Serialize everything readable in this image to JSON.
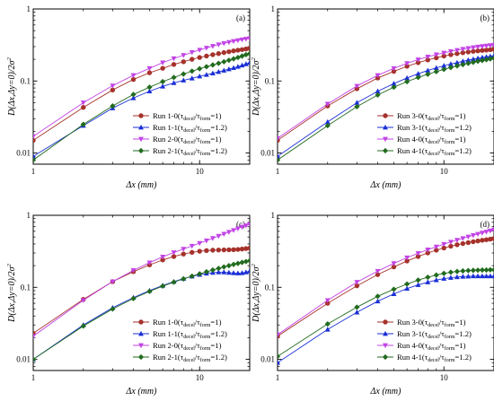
{
  "chart_data": [
    {
      "type": "line",
      "panel": "(a)",
      "xlabel": "Δx (mm)",
      "ylabel": "D(Δx,Δy=0)/2σ²",
      "xscale": "log",
      "yscale": "log",
      "xlim": [
        1,
        20
      ],
      "ylim": [
        0.007,
        1
      ],
      "x_ticks": [
        "1",
        "10"
      ],
      "y_ticks": [
        "0.01",
        "0.1",
        "1"
      ],
      "legend_position": "lower-right",
      "x": [
        1,
        2,
        3,
        4,
        5,
        6,
        7,
        8,
        9,
        10,
        11,
        12,
        13,
        14,
        15,
        16,
        17,
        18,
        19,
        20
      ],
      "series": [
        {
          "name": "Run 1-0(τ_decel/τ_form=1)",
          "color": "#a6322b",
          "marker": "circle",
          "values": [
            0.015,
            0.043,
            0.075,
            0.105,
            0.13,
            0.15,
            0.17,
            0.185,
            0.2,
            0.212,
            0.222,
            0.232,
            0.24,
            0.248,
            0.255,
            0.262,
            0.268,
            0.273,
            0.278,
            0.282
          ]
        },
        {
          "name": "Run 1-1(τ_decel/τ_form=1.2)",
          "color": "#1a2fd6",
          "marker": "triangle-up",
          "values": [
            0.009,
            0.024,
            0.042,
            0.058,
            0.072,
            0.084,
            0.094,
            0.102,
            0.109,
            0.116,
            0.122,
            0.128,
            0.134,
            0.14,
            0.146,
            0.152,
            0.158,
            0.165,
            0.172,
            0.18
          ]
        },
        {
          "name": "Run 2-0(τ_decel/τ_form=1)",
          "color": "#c243e6",
          "marker": "triangle-down",
          "values": [
            0.017,
            0.05,
            0.086,
            0.12,
            0.15,
            0.18,
            0.205,
            0.228,
            0.25,
            0.27,
            0.288,
            0.305,
            0.32,
            0.333,
            0.345,
            0.356,
            0.366,
            0.375,
            0.383,
            0.39
          ]
        },
        {
          "name": "Run 2-1(τ_decel/τ_form=1.2)",
          "color": "#216b1e",
          "marker": "diamond",
          "values": [
            0.008,
            0.025,
            0.045,
            0.065,
            0.082,
            0.098,
            0.112,
            0.125,
            0.137,
            0.148,
            0.158,
            0.167,
            0.176,
            0.185,
            0.194,
            0.203,
            0.212,
            0.222,
            0.232,
            0.24
          ]
        }
      ]
    },
    {
      "type": "line",
      "panel": "(b)",
      "xlabel": "Δx (mm)",
      "ylabel": "D(Δx,Δy=0)/2σ²",
      "xscale": "log",
      "yscale": "log",
      "xlim": [
        1,
        20
      ],
      "ylim": [
        0.007,
        1
      ],
      "x_ticks": [
        "1",
        "10"
      ],
      "y_ticks": [
        "0.01",
        "0.1",
        "1"
      ],
      "legend_position": "lower-right",
      "x": [
        1,
        2,
        3,
        4,
        5,
        6,
        7,
        8,
        9,
        10,
        11,
        12,
        13,
        14,
        15,
        16,
        17,
        18,
        19,
        20
      ],
      "series": [
        {
          "name": "Run 3-0(τ_decel/τ_form=1)",
          "color": "#a6322b",
          "marker": "circle",
          "values": [
            0.015,
            0.045,
            0.078,
            0.11,
            0.136,
            0.16,
            0.18,
            0.196,
            0.21,
            0.222,
            0.232,
            0.24,
            0.247,
            0.253,
            0.258,
            0.262,
            0.266,
            0.269,
            0.272,
            0.275
          ]
        },
        {
          "name": "Run 3-1(τ_decel/τ_form=1.2)",
          "color": "#1a2fd6",
          "marker": "triangle-up",
          "values": [
            0.009,
            0.027,
            0.05,
            0.072,
            0.092,
            0.11,
            0.126,
            0.14,
            0.152,
            0.163,
            0.172,
            0.18,
            0.188,
            0.195,
            0.201,
            0.207,
            0.212,
            0.216,
            0.22,
            0.225
          ]
        },
        {
          "name": "Run 4-0(τ_decel/τ_form=1)",
          "color": "#c243e6",
          "marker": "triangle-down",
          "values": [
            0.016,
            0.048,
            0.085,
            0.12,
            0.15,
            0.176,
            0.198,
            0.217,
            0.233,
            0.246,
            0.258,
            0.268,
            0.277,
            0.285,
            0.292,
            0.298,
            0.303,
            0.308,
            0.312,
            0.316
          ]
        },
        {
          "name": "Run 4-1(τ_decel/τ_form=1.2)",
          "color": "#216b1e",
          "marker": "diamond",
          "values": [
            0.008,
            0.024,
            0.044,
            0.064,
            0.082,
            0.098,
            0.112,
            0.124,
            0.135,
            0.145,
            0.154,
            0.162,
            0.169,
            0.176,
            0.182,
            0.188,
            0.193,
            0.198,
            0.203,
            0.208
          ]
        }
      ]
    },
    {
      "type": "line",
      "panel": "(c)",
      "xlabel": "Δx (mm)",
      "ylabel": "D(Δx,Δy=0)/2σ²",
      "xscale": "log",
      "yscale": "log",
      "xlim": [
        1,
        20
      ],
      "ylim": [
        0.007,
        1
      ],
      "x_ticks": [
        "1",
        "10"
      ],
      "y_ticks": [
        "0.01",
        "0.1",
        "1"
      ],
      "legend_position": "lower-right",
      "x": [
        1,
        2,
        3,
        4,
        5,
        6,
        7,
        8,
        9,
        10,
        11,
        12,
        13,
        14,
        15,
        16,
        17,
        18,
        19,
        20
      ],
      "series": [
        {
          "name": "Run 1-0(τ_decel/τ_form=1)",
          "color": "#a6322b",
          "marker": "circle",
          "values": [
            0.023,
            0.068,
            0.12,
            0.165,
            0.205,
            0.24,
            0.268,
            0.29,
            0.306,
            0.317,
            0.324,
            0.328,
            0.33,
            0.331,
            0.332,
            0.333,
            0.336,
            0.34,
            0.345,
            0.35
          ]
        },
        {
          "name": "Run 1-1(τ_decel/τ_form=1.2)",
          "color": "#1a2fd6",
          "marker": "triangle-up",
          "values": [
            0.01,
            0.03,
            0.052,
            0.072,
            0.09,
            0.106,
            0.12,
            0.132,
            0.142,
            0.15,
            0.156,
            0.16,
            0.162,
            0.162,
            0.16,
            0.158,
            0.157,
            0.158,
            0.162,
            0.168
          ]
        },
        {
          "name": "Run 2-0(τ_decel/τ_form=1)",
          "color": "#c243e6",
          "marker": "triangle-down",
          "values": [
            0.021,
            0.066,
            0.12,
            0.172,
            0.22,
            0.265,
            0.305,
            0.34,
            0.375,
            0.41,
            0.445,
            0.48,
            0.515,
            0.55,
            0.585,
            0.62,
            0.655,
            0.69,
            0.72,
            0.75
          ]
        },
        {
          "name": "Run 2-1(τ_decel/τ_form=1.2)",
          "color": "#216b1e",
          "marker": "diamond",
          "values": [
            0.01,
            0.029,
            0.05,
            0.07,
            0.088,
            0.104,
            0.118,
            0.131,
            0.143,
            0.154,
            0.164,
            0.174,
            0.183,
            0.192,
            0.2,
            0.208,
            0.215,
            0.222,
            0.228,
            0.234
          ]
        }
      ]
    },
    {
      "type": "line",
      "panel": "(d)",
      "xlabel": "Δx (mm)",
      "ylabel": "D(Δx,Δy=0)/2σ²",
      "xscale": "log",
      "yscale": "log",
      "xlim": [
        1,
        20
      ],
      "ylim": [
        0.007,
        1
      ],
      "x_ticks": [
        "1",
        "10"
      ],
      "y_ticks": [
        "0.01",
        "0.1",
        "1"
      ],
      "legend_position": "lower-right",
      "x": [
        1,
        2,
        3,
        4,
        5,
        6,
        7,
        8,
        9,
        10,
        11,
        12,
        13,
        14,
        15,
        16,
        17,
        18,
        19,
        20
      ],
      "series": [
        {
          "name": "Run 3-0(τ_decel/τ_form=1)",
          "color": "#a6322b",
          "marker": "circle",
          "values": [
            0.021,
            0.06,
            0.105,
            0.15,
            0.192,
            0.232,
            0.268,
            0.3,
            0.328,
            0.352,
            0.372,
            0.39,
            0.405,
            0.418,
            0.43,
            0.44,
            0.45,
            0.458,
            0.466,
            0.473
          ]
        },
        {
          "name": "Run 3-1(τ_decel/τ_form=1.2)",
          "color": "#1a2fd6",
          "marker": "triangle-up",
          "values": [
            0.009,
            0.026,
            0.045,
            0.064,
            0.081,
            0.096,
            0.108,
            0.118,
            0.126,
            0.132,
            0.136,
            0.139,
            0.141,
            0.142,
            0.143,
            0.143,
            0.143,
            0.143,
            0.143,
            0.143
          ]
        },
        {
          "name": "Run 4-0(τ_decel/τ_form=1)",
          "color": "#c243e6",
          "marker": "triangle-down",
          "values": [
            0.022,
            0.066,
            0.118,
            0.168,
            0.215,
            0.258,
            0.297,
            0.333,
            0.366,
            0.397,
            0.426,
            0.453,
            0.479,
            0.504,
            0.527,
            0.549,
            0.57,
            0.59,
            0.61,
            0.63
          ]
        },
        {
          "name": "Run 4-1(τ_decel/τ_form=1.2)",
          "color": "#216b1e",
          "marker": "diamond",
          "values": [
            0.011,
            0.031,
            0.053,
            0.075,
            0.094,
            0.111,
            0.126,
            0.138,
            0.148,
            0.156,
            0.162,
            0.166,
            0.169,
            0.171,
            0.172,
            0.173,
            0.174,
            0.174,
            0.175,
            0.175
          ]
        }
      ]
    }
  ]
}
